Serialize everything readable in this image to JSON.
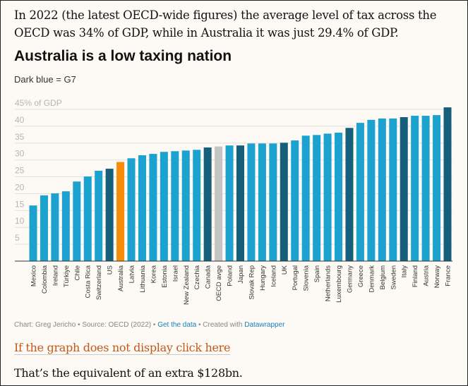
{
  "intro_text": "In 2022 (the latest OECD-wide figures) the average level of tax across the OECD was 34% of GDP, while in Australia it was just 29.4% of GDP.",
  "footer": {
    "credit": "Chart: Greg Jericho • Source: OECD (2022) • ",
    "get_data": "Get the data",
    "created": " • Created with ",
    "datawrapper": "Datawrapper"
  },
  "fallback_link": "If the graph does not display click here",
  "closing_text": "That’s the equivalent of an extra $128bn.",
  "colors": {
    "default": "#1ba2cf",
    "g7": "#155f7a",
    "australia": "#f78c0a",
    "oecd": "#c4c4c4"
  },
  "chart_data": {
    "type": "bar",
    "title": "Australia is a low taxing nation",
    "subtitle": "Dark blue = G7",
    "ylabel": "% of GDP",
    "ylim": [
      0,
      45
    ],
    "yticks": [
      5,
      10,
      15,
      20,
      25,
      30,
      35,
      40,
      45
    ],
    "ytick_labels": [
      "5",
      "10",
      "15",
      "20",
      "25",
      "30",
      "35",
      "40",
      "45% of GDP"
    ],
    "grid": true,
    "categories": [
      "Mexico",
      "Colombia",
      "Ireland",
      "Türkiye",
      "Chile",
      "Costa Rica",
      "Switzerland",
      "US",
      "Australia",
      "Latvia",
      "Lithuania",
      "Korea",
      "Estonia",
      "Israel",
      "New Zealand",
      "Czechia",
      "Canada",
      "OECD avge",
      "Poland",
      "Japan",
      "Slovak Rep",
      "Hungary",
      "Iceland",
      "UK",
      "Portugal",
      "Slovenia",
      "Spain",
      "Netherlands",
      "Luxembourg",
      "Germany",
      "Greece",
      "Denmark",
      "Belgium",
      "Sweden",
      "Italy",
      "Finland",
      "Austria",
      "Norway",
      "France"
    ],
    "values": [
      16.5,
      19.5,
      20.1,
      20.7,
      23.6,
      25.1,
      26.8,
      27.4,
      29.4,
      30.5,
      31.4,
      31.8,
      32.4,
      32.6,
      32.8,
      33.0,
      33.7,
      34.0,
      34.3,
      34.3,
      34.9,
      34.9,
      34.9,
      35.1,
      35.8,
      37.2,
      37.4,
      37.8,
      38.1,
      39.5,
      41.0,
      41.9,
      42.3,
      42.3,
      42.7,
      43.1,
      43.1,
      43.3,
      45.6
    ],
    "groups": [
      "default",
      "default",
      "default",
      "default",
      "default",
      "default",
      "default",
      "g7",
      "australia",
      "default",
      "default",
      "default",
      "default",
      "default",
      "default",
      "default",
      "g7",
      "oecd",
      "default",
      "g7",
      "default",
      "default",
      "default",
      "g7",
      "default",
      "default",
      "default",
      "default",
      "default",
      "g7",
      "default",
      "default",
      "default",
      "default",
      "g7",
      "default",
      "default",
      "default",
      "g7"
    ]
  }
}
